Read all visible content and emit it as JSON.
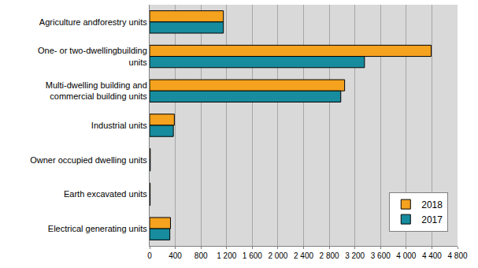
{
  "chart_data": {
    "type": "bar",
    "orientation": "horizontal",
    "categories": [
      "Agriculture andforestry units",
      "One- or two-dwellingbuilding units",
      "Multi-dwelling building and commercial building units",
      "Industrial units",
      "Owner occupied dwelling units",
      "Earth excavated units",
      "Electrical generating units"
    ],
    "series": [
      {
        "name": "2018",
        "color": "#f5a21e",
        "values": [
          1150,
          4390,
          3040,
          385,
          10,
          8,
          325
        ]
      },
      {
        "name": "2017",
        "color": "#168c9e",
        "values": [
          1150,
          3350,
          2980,
          370,
          10,
          8,
          315
        ]
      }
    ],
    "xlim": [
      0,
      4800
    ],
    "xticks": [
      0,
      400,
      800,
      {
        "value": 1200,
        "label": "1 200"
      },
      {
        "value": 1600,
        "label": "1 600"
      },
      {
        "value": 2000,
        "label": "2 000"
      },
      {
        "value": 2400,
        "label": "2 400"
      },
      {
        "value": 2800,
        "label": "2 800"
      },
      {
        "value": 3200,
        "label": "3 200"
      },
      {
        "value": 3600,
        "label": "3 600"
      },
      {
        "value": 4000,
        "label": "4 000"
      },
      {
        "value": 4400,
        "label": "4 400"
      },
      {
        "value": 4800,
        "label": "4 800"
      }
    ],
    "grid": true,
    "legend": "lower right"
  }
}
